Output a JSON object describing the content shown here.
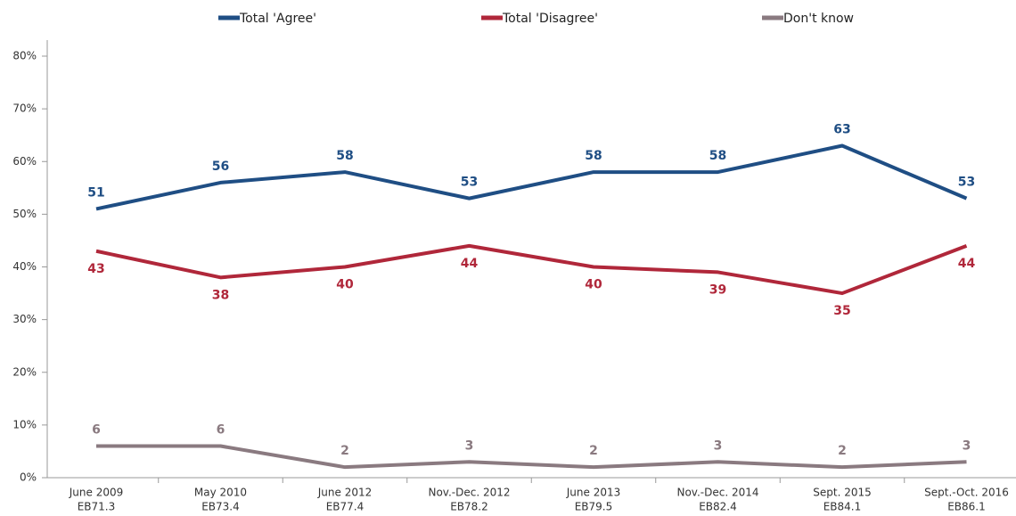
{
  "chart_data": {
    "type": "line",
    "categories": [
      [
        "June 2009",
        "EB71.3"
      ],
      [
        "May 2010",
        "EB73.4"
      ],
      [
        "June 2012",
        "EB77.4"
      ],
      [
        "Nov.-Dec. 2012",
        "EB78.2"
      ],
      [
        "June 2013",
        "EB79.5"
      ],
      [
        "Nov.-Dec. 2014",
        "EB82.4"
      ],
      [
        "Sept. 2015",
        "EB84.1"
      ],
      [
        "Sept.-Oct. 2016",
        "EB86.1"
      ]
    ],
    "series": [
      {
        "name": "Total 'Agree'",
        "color": "#1f4e84",
        "values": [
          51,
          56,
          58,
          53,
          58,
          58,
          63,
          53
        ]
      },
      {
        "name": "Total 'Disagree'",
        "color": "#b0273a",
        "values": [
          43,
          38,
          40,
          44,
          40,
          39,
          35,
          44
        ]
      },
      {
        "name": "Don't know",
        "color": "#8a7a80",
        "values": [
          6,
          6,
          2,
          3,
          2,
          3,
          2,
          3
        ]
      }
    ],
    "ylim": [
      0,
      80
    ],
    "yticks": [
      {
        "value": 0,
        "label": "0%"
      },
      {
        "value": 10,
        "label": "10%"
      },
      {
        "value": 20,
        "label": "20%"
      },
      {
        "value": 30,
        "label": "30%"
      },
      {
        "value": 40,
        "label": "40%"
      },
      {
        "value": 50,
        "label": "50%"
      },
      {
        "value": 60,
        "label": "60%"
      },
      {
        "value": 70,
        "label": "70%"
      },
      {
        "value": 80,
        "label": "80%"
      }
    ],
    "legend": "top",
    "grid": false
  }
}
